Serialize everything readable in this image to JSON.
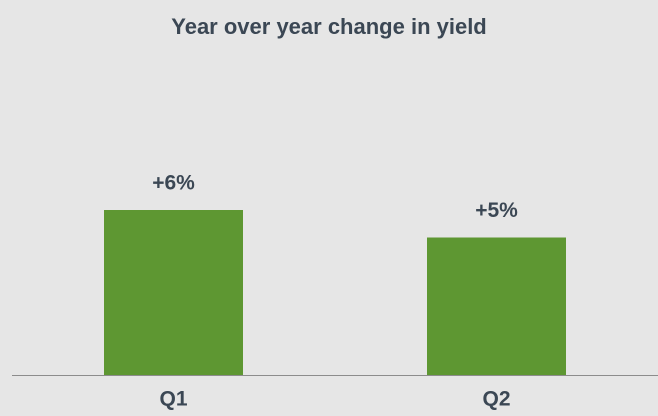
{
  "chart_data": {
    "type": "bar",
    "title": "Year over year change in yield",
    "categories": [
      "Q1",
      "Q2"
    ],
    "values": [
      6,
      5
    ],
    "value_labels": [
      "+6%",
      "+5%"
    ],
    "color": "#5e9732",
    "ylim": [
      0,
      10
    ]
  }
}
